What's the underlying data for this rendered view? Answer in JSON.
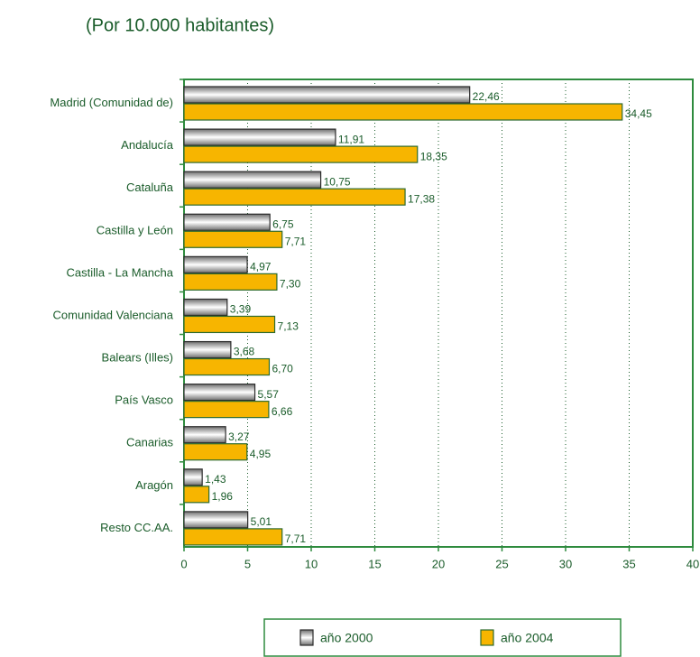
{
  "chart_data": {
    "type": "bar",
    "orientation": "horizontal",
    "title": "(Por 10.000 habitantes)",
    "categories": [
      "Madrid (Comunidad de)",
      "Andalucía",
      "Cataluña",
      "Castilla y León",
      "Castilla - La Mancha",
      "Comunidad Valenciana",
      "Balears (Illes)",
      "País Vasco",
      "Canarias",
      "Aragón",
      "Resto CC.AA."
    ],
    "series": [
      {
        "name": "año 2000",
        "color": "#9a9a9a",
        "values": [
          22.46,
          11.91,
          10.75,
          6.75,
          4.97,
          3.39,
          3.68,
          5.57,
          3.27,
          1.43,
          5.01
        ],
        "value_labels": [
          "22,46",
          "11,91",
          "10,75",
          "6,75",
          "4,97",
          "3,39",
          "3,68",
          "5,57",
          "3,27",
          "1,43",
          "5,01"
        ]
      },
      {
        "name": "año 2004",
        "color": "#f7b500",
        "values": [
          34.45,
          18.35,
          17.38,
          7.71,
          7.3,
          7.13,
          6.7,
          6.66,
          4.95,
          1.96,
          7.71
        ],
        "value_labels": [
          "34,45",
          "18,35",
          "17,38",
          "7,71",
          "7,30",
          "7,13",
          "6,70",
          "6,66",
          "4,95",
          "1,96",
          "7,71"
        ]
      }
    ],
    "xlim": [
      0,
      40
    ],
    "xticks": [
      0,
      5,
      10,
      15,
      20,
      25,
      30,
      35,
      40
    ],
    "grid": true,
    "legend": "bottom"
  }
}
